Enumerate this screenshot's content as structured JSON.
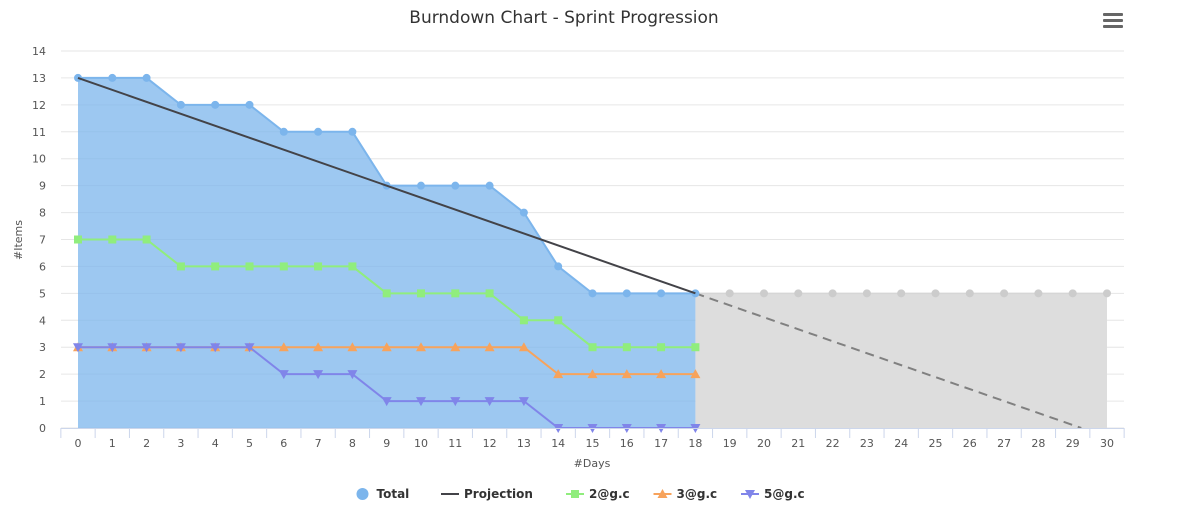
{
  "chart_data": {
    "type": "line",
    "title": "Burndown Chart - Sprint Progression",
    "xlabel": "#Days",
    "ylabel": "#Items",
    "xlim": [
      0,
      30
    ],
    "ylim": [
      0,
      14
    ],
    "x_ticks": [
      "0",
      "1",
      "2",
      "3",
      "4",
      "5",
      "6",
      "7",
      "8",
      "9",
      "10",
      "11",
      "12",
      "13",
      "14",
      "15",
      "16",
      "17",
      "18",
      "19",
      "20",
      "21",
      "22",
      "23",
      "24",
      "25",
      "26",
      "27",
      "28",
      "29",
      "30"
    ],
    "y_ticks": [
      "0",
      "1",
      "2",
      "3",
      "4",
      "5",
      "6",
      "7",
      "8",
      "9",
      "10",
      "11",
      "12",
      "13",
      "14"
    ],
    "grid": true,
    "legend_position": "bottom-center",
    "series": [
      {
        "name": "Total",
        "kind": "area",
        "color": "#7cb5ec",
        "x": [
          0,
          1,
          2,
          3,
          4,
          5,
          6,
          7,
          8,
          9,
          10,
          11,
          12,
          13,
          14,
          15,
          16,
          17,
          18
        ],
        "values": [
          13,
          13,
          13,
          12,
          12,
          12,
          11,
          11,
          11,
          9,
          9,
          9,
          9,
          8,
          6,
          5,
          5,
          5,
          5
        ]
      },
      {
        "name": "Projection",
        "kind": "line",
        "color": "#434348",
        "x": [
          0,
          18
        ],
        "values": [
          13,
          5
        ]
      },
      {
        "name": "2@g.c",
        "kind": "line",
        "marker": "square",
        "color": "#90ed7d",
        "x": [
          0,
          1,
          2,
          3,
          4,
          5,
          6,
          7,
          8,
          9,
          10,
          11,
          12,
          13,
          14,
          15,
          16,
          17,
          18
        ],
        "values": [
          7,
          7,
          7,
          6,
          6,
          6,
          6,
          6,
          6,
          5,
          5,
          5,
          5,
          4,
          4,
          3,
          3,
          3,
          3
        ]
      },
      {
        "name": "3@g.c",
        "kind": "line",
        "marker": "triangle",
        "color": "#f7a35c",
        "x": [
          0,
          1,
          2,
          3,
          4,
          5,
          6,
          7,
          8,
          9,
          10,
          11,
          12,
          13,
          14,
          15,
          16,
          17,
          18
        ],
        "values": [
          3,
          3,
          3,
          3,
          3,
          3,
          3,
          3,
          3,
          3,
          3,
          3,
          3,
          3,
          2,
          2,
          2,
          2,
          2
        ]
      },
      {
        "name": "5@g.c",
        "kind": "line",
        "marker": "triangle-down",
        "color": "#8085e9",
        "x": [
          0,
          1,
          2,
          3,
          4,
          5,
          6,
          7,
          8,
          9,
          10,
          11,
          12,
          13,
          14,
          15,
          16,
          17,
          18
        ],
        "values": [
          3,
          3,
          3,
          3,
          3,
          3,
          2,
          2,
          2,
          1,
          1,
          1,
          1,
          1,
          0,
          0,
          0,
          0,
          0
        ]
      }
    ],
    "forecast": {
      "area_color": "#dddddd",
      "marker_color": "#cccccc",
      "line_color": "#808080",
      "flat_x": [
        18,
        19,
        20,
        21,
        22,
        23,
        24,
        25,
        26,
        27,
        28,
        29,
        30
      ],
      "flat_values": [
        5,
        5,
        5,
        5,
        5,
        5,
        5,
        5,
        5,
        5,
        5,
        5,
        5
      ],
      "projection_x": [
        18,
        29.25
      ],
      "projection_values": [
        5,
        0
      ]
    }
  }
}
